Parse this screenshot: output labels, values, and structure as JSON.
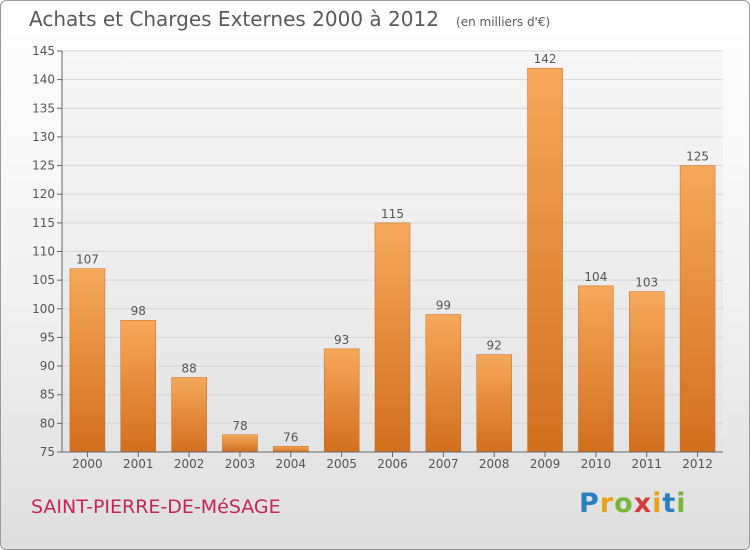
{
  "header": {
    "title": "Achats et Charges Externes 2000 à 2012",
    "unit": "(en milliers d'€)"
  },
  "footer": {
    "commune": "SAINT-PIERRE-DE-MéSAGE",
    "brand": "Proxiti"
  },
  "colors": {
    "bar_top": "#f6a85a",
    "bar_bottom": "#d26f1f",
    "grid": "#d6d6d6",
    "axis": "#666666",
    "text": "#555555"
  },
  "chart_data": {
    "type": "bar",
    "categories": [
      "2000",
      "2001",
      "2002",
      "2003",
      "2004",
      "2005",
      "2006",
      "2007",
      "2008",
      "2009",
      "2010",
      "2011",
      "2012"
    ],
    "values": [
      107,
      98,
      88,
      78,
      76,
      93,
      115,
      99,
      92,
      142,
      104,
      103,
      125
    ],
    "title": "Achats et Charges Externes 2000 à 2012",
    "xlabel": "",
    "ylabel": "",
    "ylim": [
      75,
      145
    ],
    "yticks": [
      75,
      80,
      85,
      90,
      95,
      100,
      105,
      110,
      115,
      120,
      125,
      130,
      135,
      140,
      145
    ],
    "grid": true,
    "data_labels": true
  }
}
